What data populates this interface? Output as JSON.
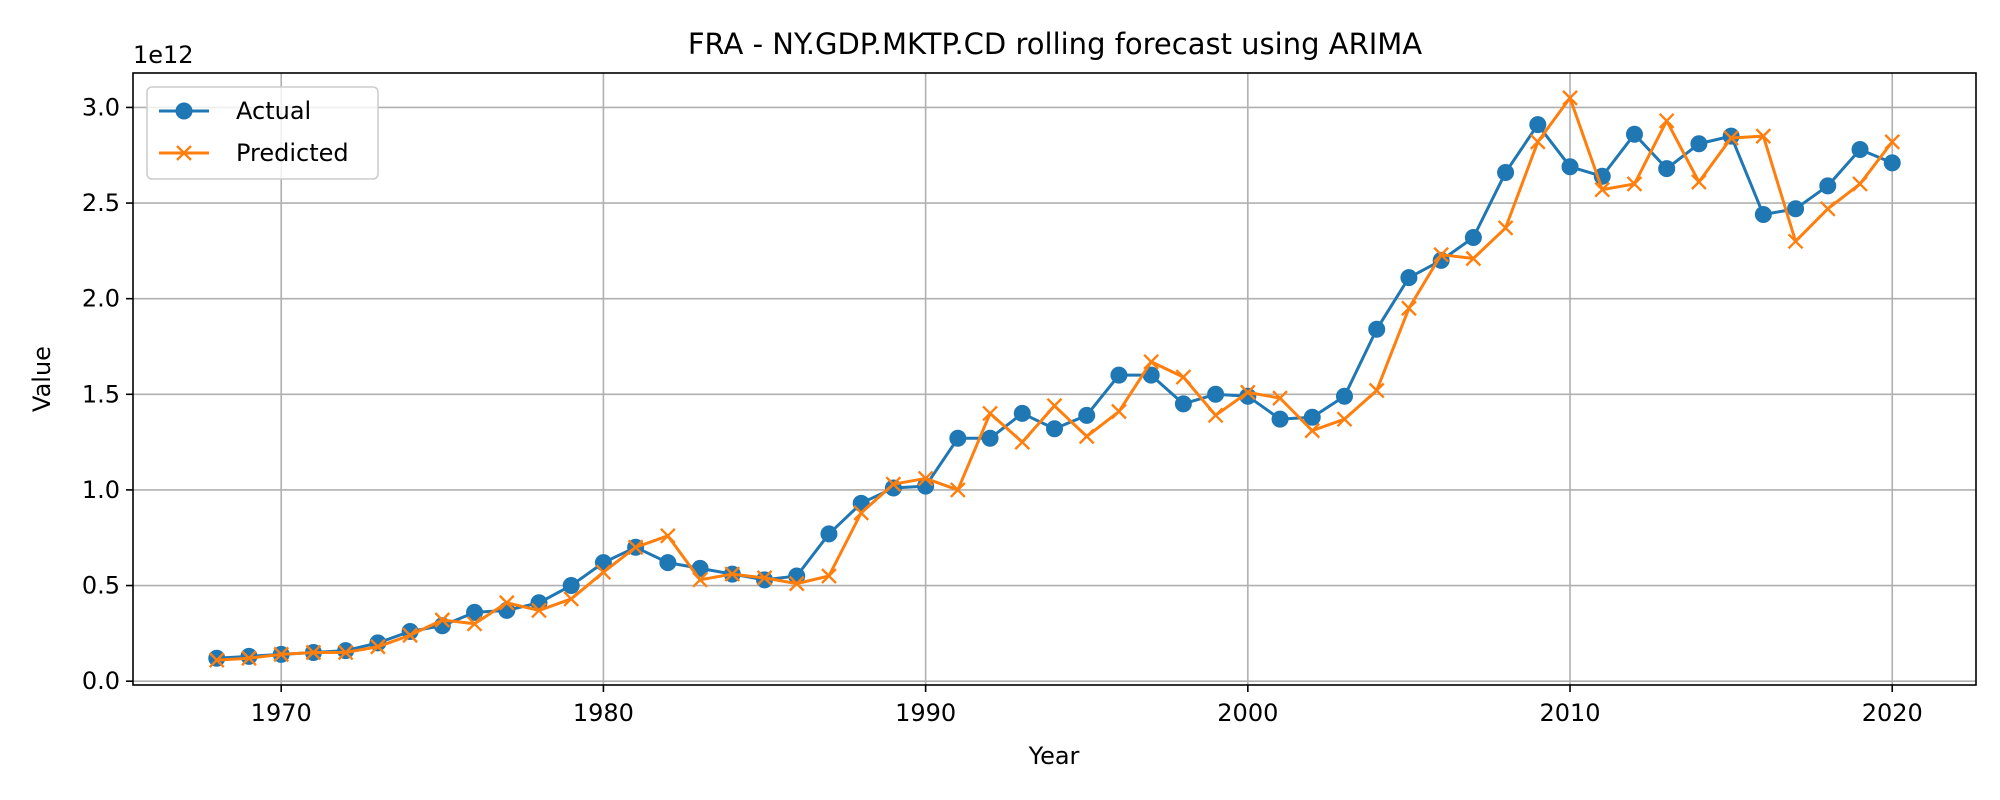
{
  "chart_data": {
    "type": "line",
    "title": "FRA - NY.GDP.MKTP.CD rolling forecast using ARIMA",
    "xlabel": "Year",
    "ylabel": "Value",
    "y_offset_text": "1e12",
    "xlim": [
      1965.4,
      2022.6
    ],
    "ylim": [
      -0.02,
      3.18
    ],
    "x_ticks": [
      1970,
      1980,
      1990,
      2000,
      2010,
      2020
    ],
    "y_ticks": [
      0.0,
      0.5,
      1.0,
      1.5,
      2.0,
      2.5,
      3.0
    ],
    "y_tick_labels": [
      "0.0",
      "0.5",
      "1.0",
      "1.5",
      "2.0",
      "2.5",
      "3.0"
    ],
    "grid": true,
    "legend_position": "upper-left",
    "x": [
      1968,
      1969,
      1970,
      1971,
      1972,
      1973,
      1974,
      1975,
      1976,
      1977,
      1978,
      1979,
      1980,
      1981,
      1982,
      1983,
      1984,
      1985,
      1986,
      1987,
      1988,
      1989,
      1990,
      1991,
      1992,
      1993,
      1994,
      1995,
      1996,
      1997,
      1998,
      1999,
      2000,
      2001,
      2002,
      2003,
      2004,
      2005,
      2006,
      2007,
      2008,
      2009,
      2010,
      2011,
      2012,
      2013,
      2014,
      2015,
      2016,
      2017,
      2018,
      2019,
      2020
    ],
    "series": [
      {
        "name": "Actual",
        "color": "#1f77b4",
        "marker": "circle",
        "values": [
          0.12,
          0.13,
          0.14,
          0.15,
          0.16,
          0.2,
          0.26,
          0.29,
          0.36,
          0.37,
          0.41,
          0.5,
          0.62,
          0.7,
          0.62,
          0.59,
          0.56,
          0.53,
          0.55,
          0.77,
          0.93,
          1.01,
          1.02,
          1.27,
          1.27,
          1.4,
          1.32,
          1.39,
          1.6,
          1.6,
          1.45,
          1.5,
          1.49,
          1.37,
          1.38,
          1.49,
          1.84,
          2.11,
          2.2,
          2.32,
          2.66,
          2.91,
          2.69,
          2.64,
          2.86,
          2.68,
          2.81,
          2.85,
          2.44,
          2.47,
          2.59,
          2.78,
          2.71
        ]
      },
      {
        "name": "Predicted",
        "color": "#ff7f0e",
        "marker": "x",
        "values": [
          0.11,
          0.12,
          0.14,
          0.15,
          0.15,
          0.18,
          0.24,
          0.32,
          0.3,
          0.41,
          0.37,
          0.43,
          0.57,
          0.7,
          0.76,
          0.53,
          0.56,
          0.54,
          0.51,
          0.55,
          0.88,
          1.03,
          1.06,
          1.0,
          1.4,
          1.25,
          1.44,
          1.28,
          1.41,
          1.67,
          1.59,
          1.39,
          1.51,
          1.48,
          1.31,
          1.37,
          1.52,
          1.95,
          2.23,
          2.21,
          2.37,
          2.82,
          3.05,
          2.57,
          2.6,
          2.93,
          2.61,
          2.84,
          2.85,
          2.3,
          2.47,
          2.6,
          2.82
        ]
      }
    ]
  }
}
